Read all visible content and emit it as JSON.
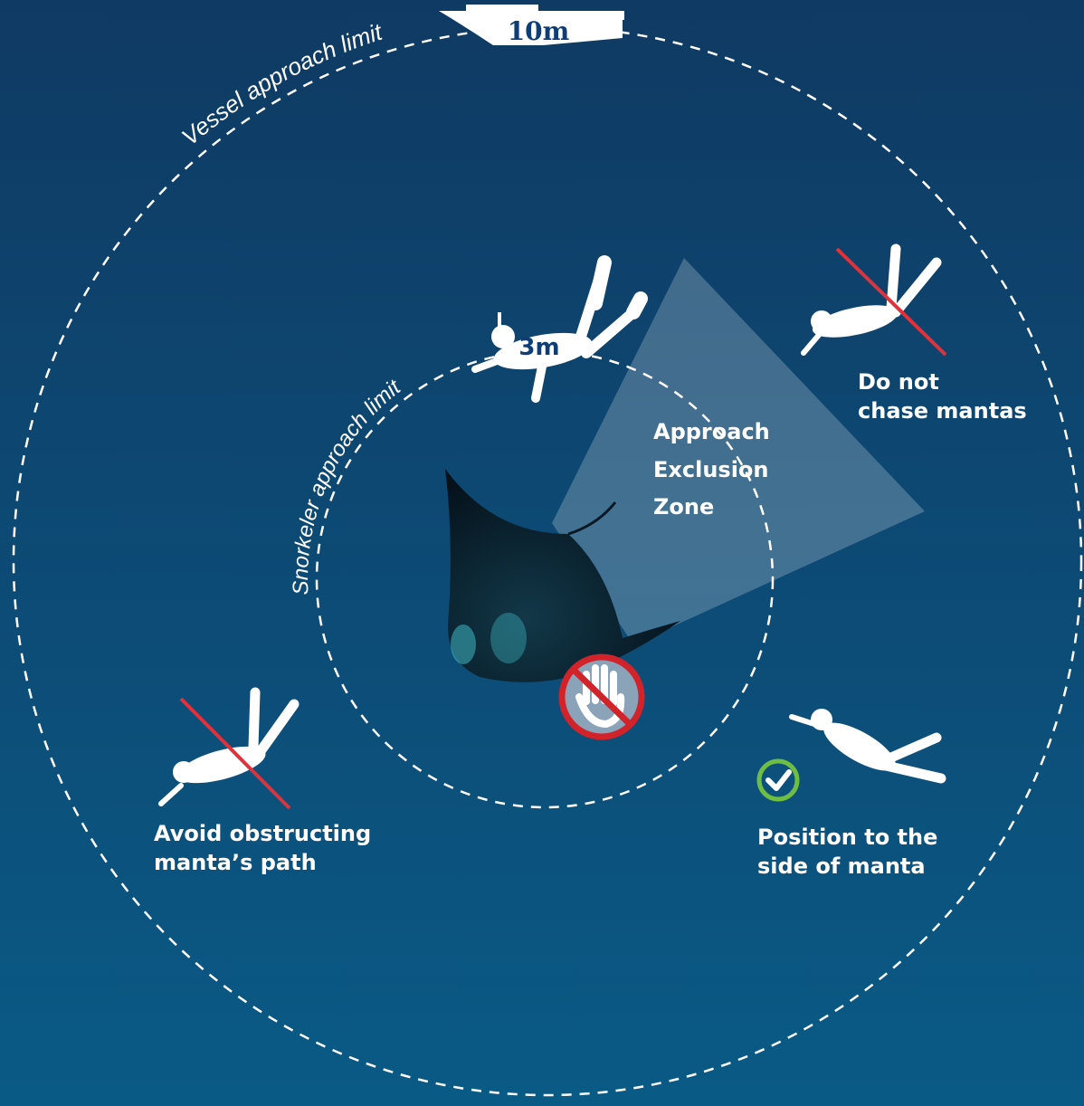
{
  "labels": {
    "vessel_limit": "Vessel approach limit",
    "vessel_distance": "10m",
    "snorkeler_limit": "Snorkeler approach limit",
    "snorkeler_distance": "3m"
  },
  "exclusion_zone": {
    "lines": [
      "Approach",
      "Exclusion",
      "Zone"
    ]
  },
  "guidance": [
    {
      "lines": [
        "Do not",
        "chase mantas"
      ]
    },
    {
      "lines": [
        "Avoid obstructing",
        "manta’s path"
      ]
    },
    {
      "lines": [
        "Position to the",
        "side of manta"
      ]
    }
  ]
}
